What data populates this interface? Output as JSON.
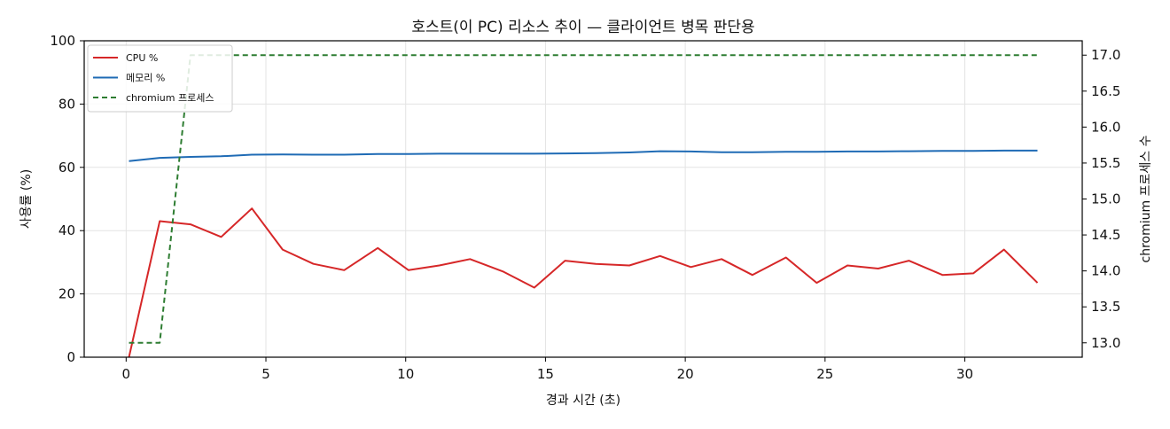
{
  "chart_data": {
    "type": "line",
    "title": "호스트(이 PC) 리소스 추이 — 클라이언트 병목 판단용",
    "xlabel": "경과 시간 (초)",
    "ylabel": "사용률 (%)",
    "y2label": "chromium 프로세스 수",
    "xlim": [
      -1.5,
      34.2
    ],
    "ylim": [
      0,
      100
    ],
    "y2lim": [
      12.8,
      17.2
    ],
    "xticks": [
      0,
      5,
      10,
      15,
      20,
      25,
      30
    ],
    "yticks": [
      0,
      20,
      40,
      60,
      80,
      100
    ],
    "y2ticks": [
      13.0,
      13.5,
      14.0,
      14.5,
      15.0,
      15.5,
      16.0,
      16.5,
      17.0
    ],
    "y2tick_labels": [
      "13.0",
      "13.5",
      "14.0",
      "14.5",
      "15.0",
      "15.5",
      "16.0",
      "16.5",
      "17.0"
    ],
    "grid": true,
    "legend_position": "top-left",
    "x": [
      0.1,
      1.2,
      2.3,
      3.4,
      4.5,
      5.6,
      6.7,
      7.8,
      9.0,
      10.1,
      11.2,
      12.3,
      13.5,
      14.6,
      15.7,
      16.8,
      18.0,
      19.1,
      20.2,
      21.3,
      22.4,
      23.6,
      24.7,
      25.8,
      26.9,
      28.0,
      29.2,
      30.3,
      31.4,
      32.6
    ],
    "series": [
      {
        "name": "CPU %",
        "axis": "left",
        "color": "#d62728",
        "style": "solid",
        "values": [
          0,
          43,
          42,
          38,
          47,
          34,
          29.5,
          27.5,
          34.5,
          27.5,
          29,
          31,
          27,
          22,
          30.5,
          29.5,
          29,
          32,
          28.5,
          31,
          26,
          31.5,
          23.5,
          29,
          28,
          30.5,
          26,
          26.5,
          34,
          23.5
        ]
      },
      {
        "name": "메모리 %",
        "axis": "left",
        "color": "#1f6bb5",
        "style": "solid",
        "values": [
          62,
          63,
          63.3,
          63.5,
          64,
          64.1,
          64,
          64,
          64.2,
          64.2,
          64.3,
          64.3,
          64.3,
          64.3,
          64.4,
          64.5,
          64.7,
          65.1,
          65,
          64.8,
          64.8,
          64.9,
          64.9,
          65,
          65,
          65.1,
          65.2,
          65.2,
          65.3,
          65.3
        ]
      },
      {
        "name": "chromium 프로세스",
        "axis": "right",
        "color": "#2e7d32",
        "style": "dashed",
        "values": [
          13,
          13,
          17,
          17,
          17,
          17,
          17,
          17,
          17,
          17,
          17,
          17,
          17,
          17,
          17,
          17,
          17,
          17,
          17,
          17,
          17,
          17,
          17,
          17,
          17,
          17,
          17,
          17,
          17,
          17
        ]
      }
    ]
  }
}
